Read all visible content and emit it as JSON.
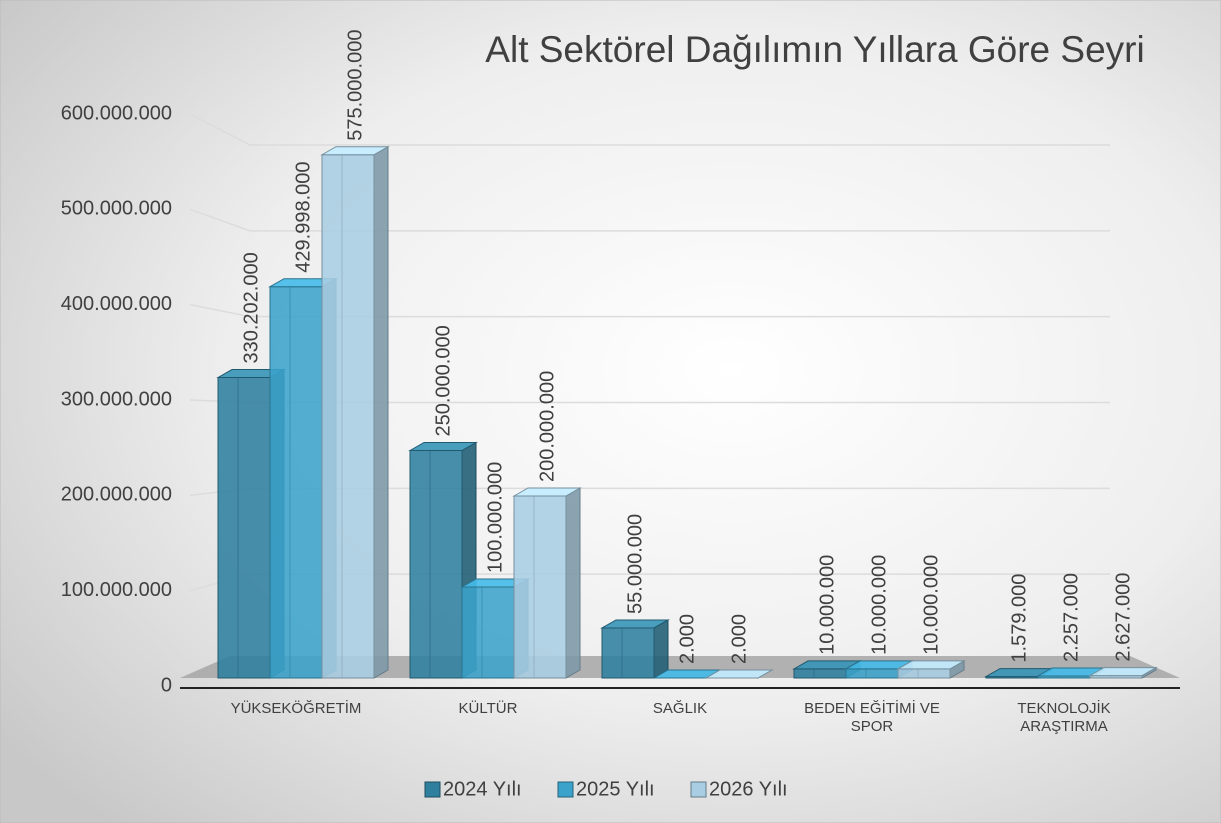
{
  "chart_data": {
    "type": "bar3d",
    "title": "Alt Sektörel Dağılımın Yıllara Göre Seyri",
    "categories": [
      "YÜKSEKÖĞRETİM",
      "KÜLTÜR",
      "SAĞLIK",
      "BEDEN EĞİTİMİ VE SPOR",
      "TEKNOLOJİK ARAŞTIRMA"
    ],
    "series": [
      {
        "name": "2024 Yılı",
        "color": "#2f809f",
        "values": [
          330202000,
          250000000,
          55000000,
          10000000,
          1579000
        ],
        "value_labels": [
          "330.202.000",
          "250.000.000",
          "55.000.000",
          "10.000.000",
          "1.579.000"
        ]
      },
      {
        "name": "2025 Yılı",
        "color": "#3ba3cb",
        "values": [
          429998000,
          100000000,
          2000,
          10000000,
          2257000
        ],
        "value_labels": [
          "429.998.000",
          "100.000.000",
          "2.000",
          "10.000.000",
          "2.257.000"
        ]
      },
      {
        "name": "2026 Yılı",
        "color": "#a9cde2",
        "values": [
          575000000,
          200000000,
          2000,
          10000000,
          2627000
        ],
        "value_labels": [
          "575.000.000",
          "200.000.000",
          "2.000",
          "10.000.000",
          "2.627.000"
        ]
      }
    ],
    "ylim": [
      0,
      600000000
    ],
    "yticks": [
      0,
      {
        "value": 100000000,
        "label": "100.000.000"
      },
      {
        "value": 200000000,
        "label": "200.000.000"
      },
      {
        "value": 300000000,
        "label": "300.000.000"
      },
      {
        "value": 400000000,
        "label": "400.000.000"
      },
      {
        "value": 500000000,
        "label": "500.000.000"
      },
      {
        "value": 600000000,
        "label": "600.000.000"
      }
    ],
    "grid": true,
    "legend": "bottom"
  }
}
